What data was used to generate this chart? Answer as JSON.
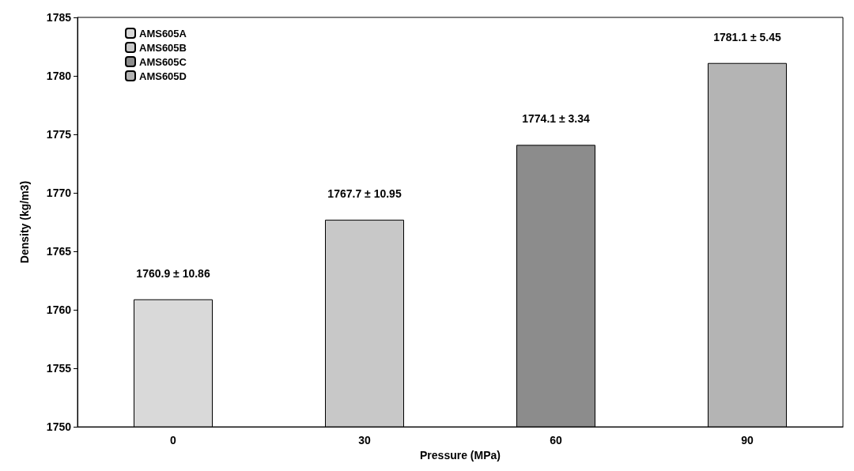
{
  "chart_data": {
    "type": "bar",
    "xlabel": "Pressure (MPa)",
    "ylabel": "Density (kg/m3)",
    "categories": [
      "0",
      "30",
      "60",
      "90"
    ],
    "series": [
      {
        "name": "AMS605A",
        "color": "#d9d9d9",
        "values": [
          1760.9,
          null,
          null,
          null
        ],
        "value_labels": [
          "1760.9 ± 10.86",
          null,
          null,
          null
        ]
      },
      {
        "name": "AMS605B",
        "color": "#c8c8c8",
        "values": [
          null,
          1767.7,
          null,
          null
        ],
        "value_labels": [
          null,
          "1767.7 ± 10.95",
          null,
          null
        ]
      },
      {
        "name": "AMS605C",
        "color": "#8c8c8c",
        "values": [
          null,
          null,
          1774.1,
          null
        ],
        "value_labels": [
          null,
          null,
          "1774.1 ± 3.34",
          null
        ]
      },
      {
        "name": "AMS605D",
        "color": "#b4b4b4",
        "values": [
          null,
          null,
          null,
          1781.1
        ],
        "value_labels": [
          null,
          null,
          null,
          "1781.1 ± 5.45"
        ]
      }
    ],
    "ylim": [
      1750,
      1785
    ],
    "yticks": [
      1750,
      1755,
      1760,
      1765,
      1770,
      1775,
      1780,
      1785
    ],
    "grid": false,
    "legend": "top left"
  }
}
